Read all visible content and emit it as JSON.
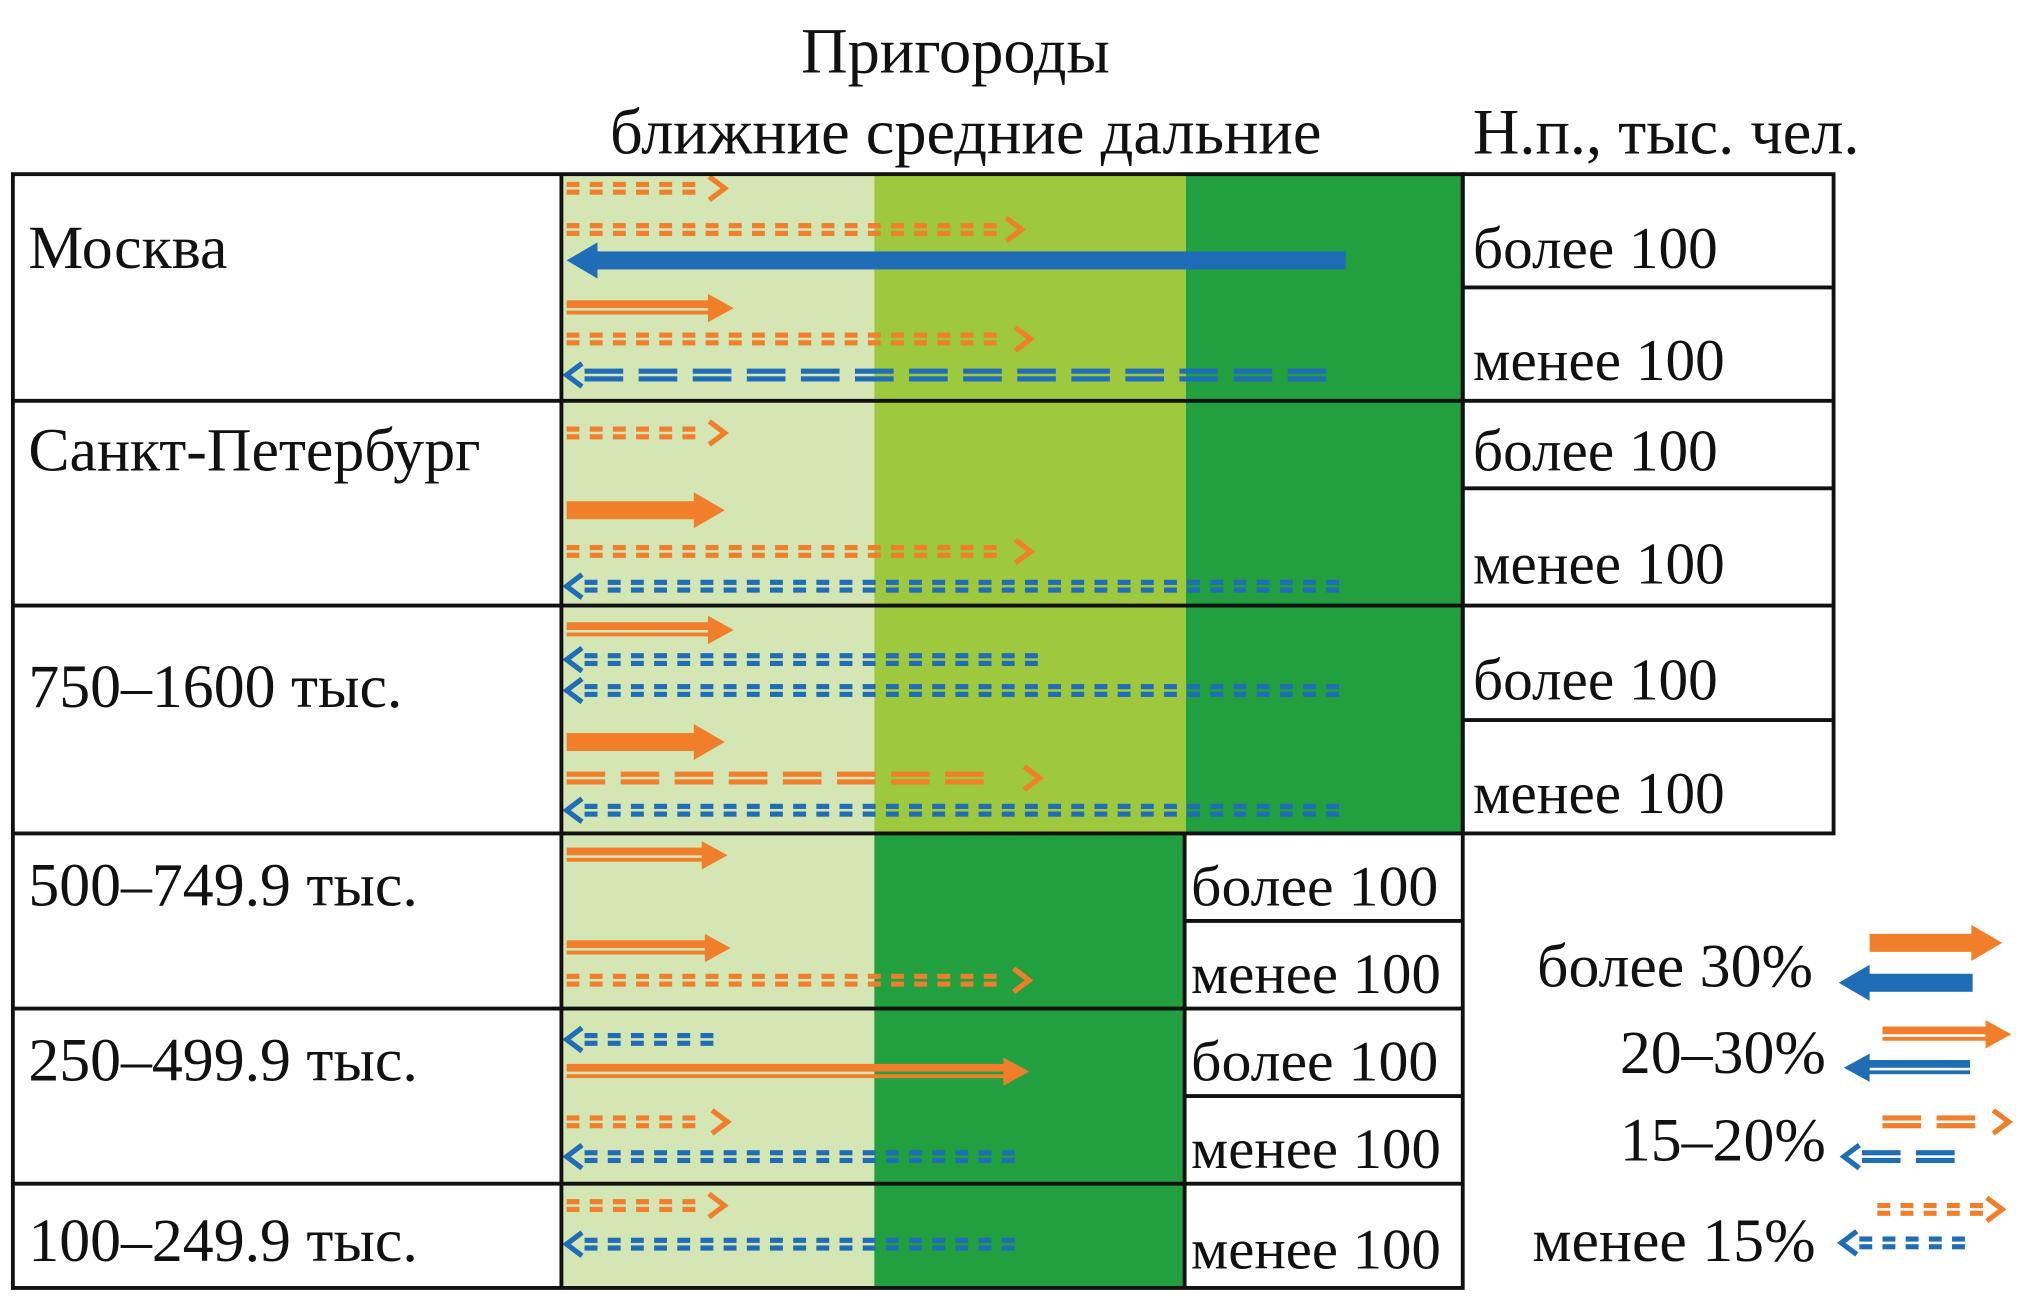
{
  "header": {
    "title": "Пригороды",
    "zones": "ближние средние дальние",
    "population": "Н.п., тыс. чел."
  },
  "colors": {
    "near": "#d3e6b4",
    "mid": "#9ec83e",
    "far": "#22a03f",
    "outflow": "#f07e2a",
    "inflow": "#1e6db6"
  },
  "rows": [
    {
      "label": "Москва",
      "subs": [
        "более 100",
        "менее 100"
      ],
      "arrows": [
        {
          "dir": "out",
          "level": "lt15",
          "reach": 0.18
        },
        {
          "dir": "out",
          "level": "lt15",
          "reach": 0.51
        },
        {
          "dir": "in",
          "level": "gt30",
          "reach": 0.87
        },
        {
          "dir": "out",
          "level": "20-30",
          "reach": 0.19
        },
        {
          "dir": "out",
          "level": "lt15",
          "reach": 0.52
        },
        {
          "dir": "in",
          "level": "15-20",
          "reach": 0.86
        }
      ]
    },
    {
      "label": "Санкт-Петербург",
      "subs": [
        "более 100",
        "менее 100"
      ],
      "arrows": [
        {
          "dir": "out",
          "level": "lt15",
          "reach": 0.18
        },
        {
          "dir": "out",
          "level": "gt30",
          "reach": 0.18
        },
        {
          "dir": "out",
          "level": "lt15",
          "reach": 0.52
        },
        {
          "dir": "in",
          "level": "lt15",
          "reach": 0.87
        }
      ]
    },
    {
      "label": "750–1600 тыс.",
      "subs": [
        "более 100",
        "менее 100"
      ],
      "arrows": [
        {
          "dir": "out",
          "level": "20-30",
          "reach": 0.19
        },
        {
          "dir": "in",
          "level": "lt15",
          "reach": 0.53
        },
        {
          "dir": "in",
          "level": "lt15",
          "reach": 0.87
        },
        {
          "dir": "out",
          "level": "gt30",
          "reach": 0.18
        },
        {
          "dir": "out",
          "level": "15-20",
          "reach": 0.53
        },
        {
          "dir": "in",
          "level": "lt15",
          "reach": 0.87
        }
      ]
    },
    {
      "label": "500–749.9 тыс.",
      "subs": [
        "более 100",
        "менее 100"
      ],
      "arrows": [
        {
          "dir": "out",
          "level": "20-30",
          "reach": 0.265
        },
        {
          "dir": "out",
          "level": "20-30",
          "reach": 0.27
        },
        {
          "dir": "out",
          "level": "lt15",
          "reach": 0.75
        }
      ]
    },
    {
      "label": "250–499.9 тыс.",
      "subs": [
        "более 100",
        "менее 100"
      ],
      "arrows": [
        {
          "dir": "in",
          "level": "lt15",
          "reach": 0.265
        },
        {
          "dir": "out",
          "level": "20-30",
          "reach": 0.75
        },
        {
          "dir": "out",
          "level": "lt15",
          "reach": 0.265
        },
        {
          "dir": "in",
          "level": "lt15",
          "reach": 0.75
        }
      ]
    },
    {
      "label": "100–249.9 тыс.",
      "subs": [
        "менее 100"
      ],
      "arrows": [
        {
          "dir": "out",
          "level": "lt15",
          "reach": 0.26
        },
        {
          "dir": "in",
          "level": "lt15",
          "reach": 0.76
        }
      ]
    }
  ],
  "legend": [
    {
      "label": "более 30%",
      "level": "gt30"
    },
    {
      "label": "20–30%",
      "level": "20-30"
    },
    {
      "label": "15–20%",
      "level": "15-20"
    },
    {
      "label": "менее 15%",
      "level": "lt15"
    }
  ]
}
